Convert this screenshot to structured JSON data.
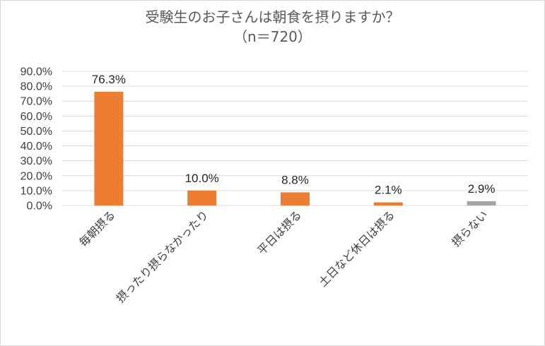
{
  "chart_data": {
    "type": "bar",
    "title": "受験生のお子さんは朝食を摂りますか？",
    "subtitle": "（n＝720）",
    "categories": [
      "毎朝摂る",
      "摂ったり摂らなかったり",
      "平日は摂る",
      "土日など休日は摂る",
      "摂らない"
    ],
    "values": [
      76.3,
      10.0,
      8.8,
      2.1,
      2.9
    ],
    "data_labels": [
      "76.3%",
      "10.0%",
      "8.8%",
      "2.1%",
      "2.9%"
    ],
    "bar_colors": [
      "#ED7D31",
      "#ED7D31",
      "#ED7D31",
      "#ED7D31",
      "#A5A5A5"
    ],
    "yticks": [
      0,
      10,
      20,
      30,
      40,
      50,
      60,
      70,
      80,
      90
    ],
    "ytick_labels": [
      "0.0%",
      "10.0%",
      "20.0%",
      "30.0%",
      "40.0%",
      "50.0%",
      "60.0%",
      "70.0%",
      "80.0%",
      "90.0%"
    ],
    "ylim": [
      0,
      90
    ],
    "xlabel": "",
    "ylabel": "",
    "grid": true,
    "legend": "none",
    "gridline_color": "#d9d9d9"
  }
}
